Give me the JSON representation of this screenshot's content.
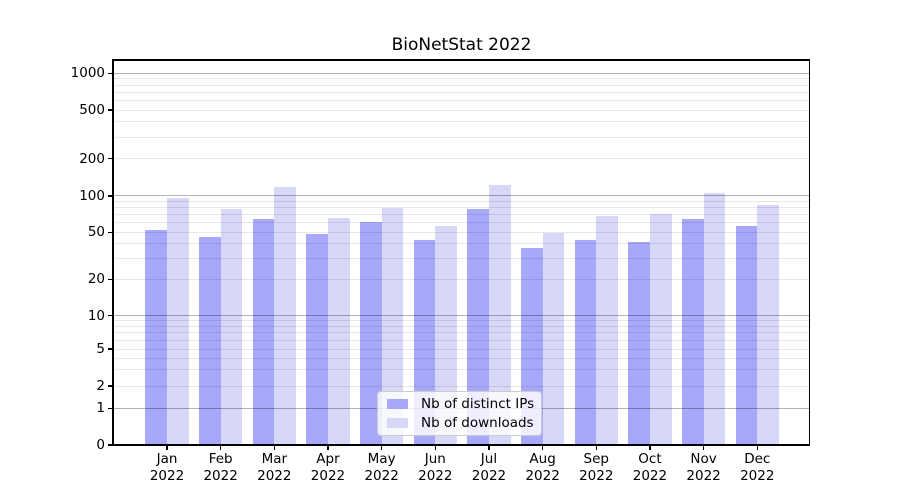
{
  "title": "BioNetStat 2022",
  "chart_data": {
    "type": "bar",
    "title": "BioNetStat 2022",
    "categories": [
      "Jan 2022",
      "Feb 2022",
      "Mar 2022",
      "Apr 2022",
      "May 2022",
      "Jun 2022",
      "Jul 2022",
      "Aug 2022",
      "Sep 2022",
      "Oct 2022",
      "Nov 2022",
      "Dec 2022"
    ],
    "series": [
      {
        "name": "Nb of distinct IPs",
        "color": "#a8a8fa",
        "values": [
          52,
          46,
          64,
          48,
          61,
          43,
          78,
          37,
          43,
          41,
          65,
          56
        ]
      },
      {
        "name": "Nb of downloads",
        "color": "#d7d7f8",
        "values": [
          96,
          78,
          118,
          66,
          80,
          56,
          123,
          49,
          68,
          71,
          105,
          84
        ]
      }
    ],
    "yscale": "symlog",
    "yticks": [
      0,
      1,
      2,
      5,
      10,
      20,
      50,
      100,
      200,
      500,
      1000
    ],
    "xlabel": "",
    "ylabel": "",
    "grid": true,
    "legend_position": "lower center",
    "colors": {
      "major_grid": "#b3b3b3",
      "minor_grid": "#e7e7e7",
      "axis": "#000000",
      "background": "#ffffff"
    }
  }
}
